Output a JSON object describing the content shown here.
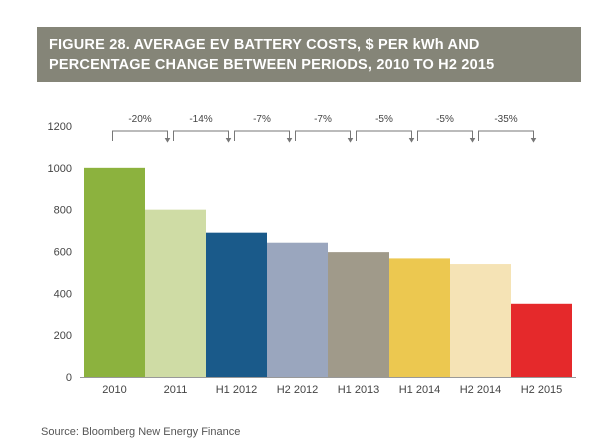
{
  "figure": {
    "title_line1": "FIGURE 28. AVERAGE EV BATTERY COSTS, $ PER  kWh  AND",
    "title_line2": "PERCENTAGE CHANGE BETWEEN PERIODS, 2010 TO H2 2015",
    "source": "Source: Bloomberg New Energy Finance"
  },
  "colors": {
    "title_bg": "#858578",
    "bars": [
      "#8cb23e",
      "#cfdca5",
      "#1a5a8a",
      "#9aa6be",
      "#a09a8a",
      "#ecc850",
      "#f5e3b5",
      "#e5292b"
    ]
  },
  "chart_data": {
    "type": "bar",
    "title": "FIGURE 28. AVERAGE EV BATTERY COSTS, $ PER kWh AND PERCENTAGE CHANGE BETWEEN PERIODS, 2010 TO H2 2015",
    "categories": [
      "2010",
      "2011",
      "H1 2012",
      "H2 2012",
      "H1 2013",
      "H1 2014",
      "H2 2014",
      "H2 2015"
    ],
    "values": [
      1000,
      800,
      690,
      642,
      597,
      567,
      540,
      350
    ],
    "changes": [
      "-20%",
      "-14%",
      "-7%",
      "-7%",
      "-5%",
      "-5%",
      "-35%"
    ],
    "yticks": [
      0,
      200,
      400,
      600,
      800,
      1000,
      1200
    ],
    "ylim": [
      0,
      1200
    ],
    "xlabel": "",
    "ylabel": "",
    "grid": false,
    "legend": "none"
  }
}
